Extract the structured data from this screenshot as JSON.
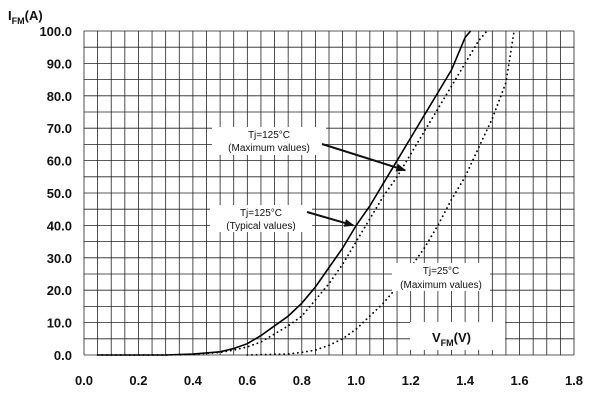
{
  "chart_data": {
    "type": "line",
    "xlim": [
      0.0,
      1.8
    ],
    "ylim": [
      0.0,
      100.0
    ],
    "x_ticks": [
      "0.0",
      "0.2",
      "0.4",
      "0.6",
      "0.8",
      "1.0",
      "1.2",
      "1.4",
      "1.6",
      "1.8"
    ],
    "y_ticks": [
      "0.0",
      "10.0",
      "20.0",
      "30.0",
      "40.0",
      "50.0",
      "60.0",
      "70.0",
      "80.0",
      "90.0",
      "100.0"
    ],
    "ylabel": {
      "main": "I",
      "sub": "FM",
      "unit": "(A)"
    },
    "xlabel": {
      "main": "V",
      "sub": "FM",
      "unit": "(V)"
    },
    "grid": true,
    "series": [
      {
        "style": "solid",
        "x": [
          0.05,
          0.3,
          0.4,
          0.5,
          0.55,
          0.6,
          0.65,
          0.7,
          0.75,
          0.8,
          0.85,
          0.9,
          0.95,
          1.0,
          1.05,
          1.1,
          1.15,
          1.2,
          1.25,
          1.3,
          1.35,
          1.38,
          1.4,
          1.42
        ],
        "y": [
          0,
          0,
          0.3,
          1,
          2,
          3.5,
          6,
          9,
          12,
          16,
          21,
          27,
          33,
          40,
          46,
          53,
          60,
          67,
          74,
          81,
          88,
          94,
          98,
          100
        ]
      },
      {
        "style": "dotted",
        "x": [
          0.05,
          0.3,
          0.4,
          0.5,
          0.55,
          0.6,
          0.65,
          0.7,
          0.75,
          0.8,
          0.85,
          0.9,
          0.95,
          1.0,
          1.05,
          1.1,
          1.15,
          1.2,
          1.25,
          1.3,
          1.35,
          1.4,
          1.45,
          1.48
        ],
        "y": [
          0,
          0,
          0.2,
          0.8,
          1.5,
          2.5,
          4,
          6.5,
          9,
          12,
          17,
          22,
          28,
          35,
          42,
          49,
          55,
          62,
          69,
          76,
          83,
          90,
          97,
          100
        ]
      },
      {
        "style": "dotted",
        "x": [
          0.6,
          0.75,
          0.8,
          0.85,
          0.9,
          0.95,
          1.0,
          1.05,
          1.1,
          1.15,
          1.2,
          1.25,
          1.3,
          1.35,
          1.4,
          1.45,
          1.5,
          1.55,
          1.58
        ],
        "y": [
          0,
          0.3,
          0.8,
          1.5,
          3,
          5,
          8,
          12,
          16,
          21,
          27,
          33,
          40,
          48,
          55,
          64,
          73,
          84,
          100
        ]
      }
    ],
    "annotations": [
      {
        "lines": [
          "Tj=125°C",
          "(Maximum values)"
        ],
        "point_to": [
          1.18,
          57
        ]
      },
      {
        "lines": [
          "Tj=125°C",
          "(Typical values)"
        ],
        "point_to": [
          0.99,
          40
        ]
      },
      {
        "lines": [
          "Tj=25°C",
          "(Maximum values)"
        ],
        "point_to": null
      }
    ]
  }
}
